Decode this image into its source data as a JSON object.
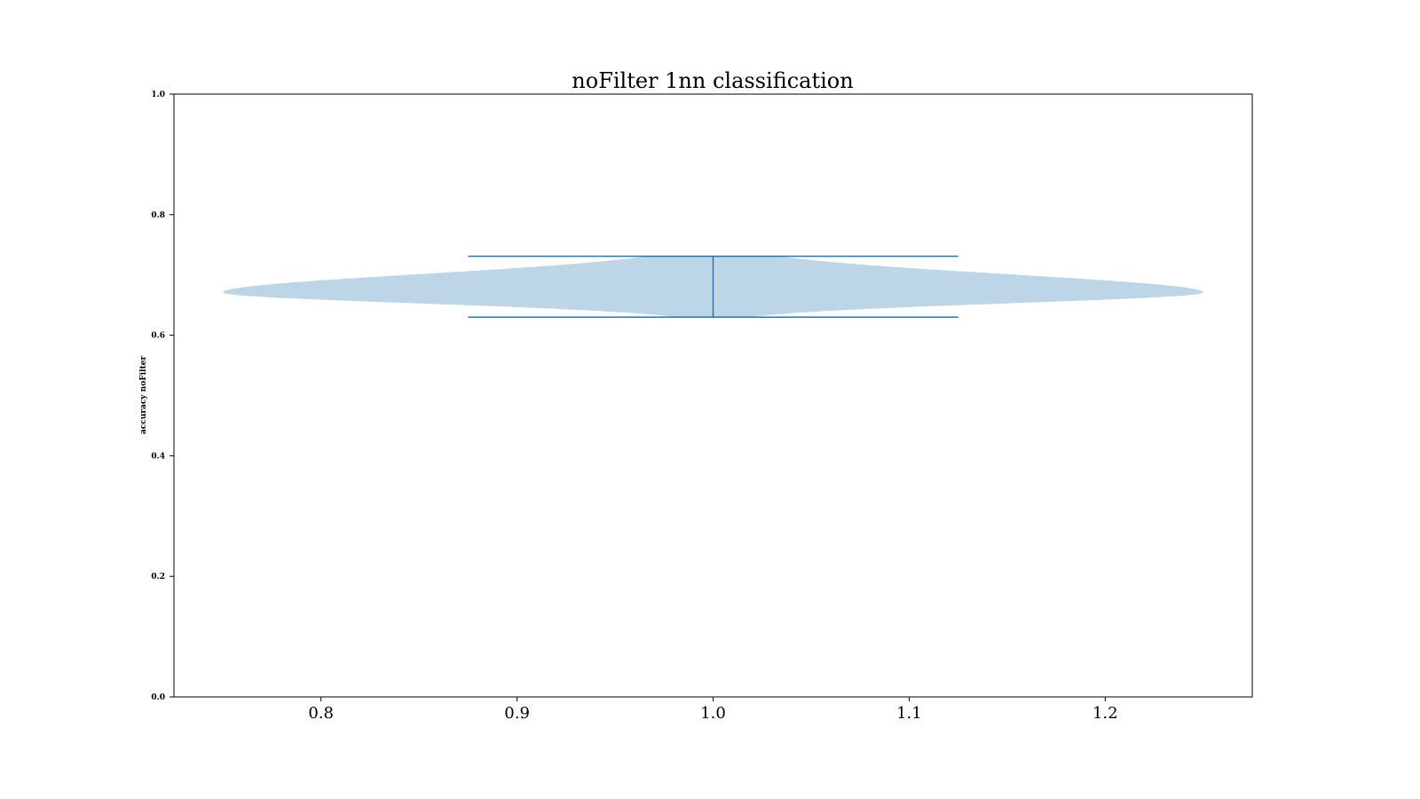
{
  "chart_data": {
    "type": "violin",
    "title": "noFilter 1nn classification",
    "xlabel": "",
    "ylabel": "accuracy noFilter",
    "xlim": [
      0.725,
      1.275
    ],
    "ylim": [
      0.0,
      1.0
    ],
    "xticks": [
      {
        "value": 0.8,
        "label": "0.8"
      },
      {
        "value": 0.9,
        "label": "0.9"
      },
      {
        "value": 1.0,
        "label": "1.0"
      },
      {
        "value": 1.1,
        "label": "1.1"
      },
      {
        "value": 1.2,
        "label": "1.2"
      }
    ],
    "yticks": [
      {
        "value": 0.0,
        "label": "0.0"
      },
      {
        "value": 0.2,
        "label": "0.2"
      },
      {
        "value": 0.4,
        "label": "0.4"
      },
      {
        "value": 0.6,
        "label": "0.6"
      },
      {
        "value": 0.8,
        "label": "0.8"
      },
      {
        "value": 1.0,
        "label": "1.0"
      }
    ],
    "grid": false,
    "violins": [
      {
        "position": 1.0,
        "min": 0.63,
        "max": 0.731,
        "peak": 0.671,
        "half_width": 0.25,
        "whisker_half_width": 0.125,
        "body_color": "#bcd6e8",
        "line_color": "#1f77b4"
      }
    ]
  }
}
